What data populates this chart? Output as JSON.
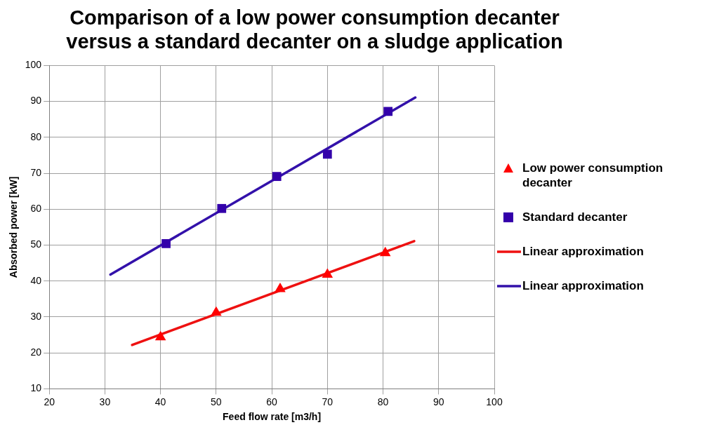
{
  "chart_data": {
    "type": "scatter",
    "title": "Comparison of a low power consumption decanter versus a standard decanter on a sludge application",
    "xlabel": "Feed flow rate [m3/h]",
    "ylabel": "Absorbed power [kW]",
    "xlim": [
      20,
      100
    ],
    "xticks": [
      20,
      30,
      40,
      50,
      60,
      70,
      80,
      90,
      100
    ],
    "ylim": [
      10,
      100
    ],
    "yticks": [
      10,
      20,
      30,
      40,
      50,
      60,
      70,
      80,
      90,
      100
    ],
    "grid": true,
    "legend": "right",
    "series": [
      {
        "name": "Low power consumption decanter",
        "type": "scatter",
        "marker": "triangle",
        "color": "#ff0000",
        "x": [
          40,
          50,
          61.5,
          70,
          80.4
        ],
        "values": [
          24.4,
          31.2,
          37.8,
          41.8,
          47.8
        ]
      },
      {
        "name": "Standard decanter",
        "type": "scatter",
        "marker": "square",
        "color": "#3300aa",
        "x": [
          41,
          51,
          60.9,
          70,
          80.9
        ],
        "values": [
          50.4,
          60.2,
          69.1,
          75.3,
          87.2
        ]
      },
      {
        "name": "Linear approximation",
        "type": "line",
        "marker": "none",
        "color": "#ee1111",
        "x": [
          34.9,
          85.6
        ],
        "values": [
          22.2,
          51.1
        ]
      },
      {
        "name": "Linear approximation",
        "type": "line",
        "marker": "none",
        "color": "#3311aa",
        "x": [
          31,
          85.8
        ],
        "values": [
          41.8,
          91.1
        ]
      }
    ]
  }
}
